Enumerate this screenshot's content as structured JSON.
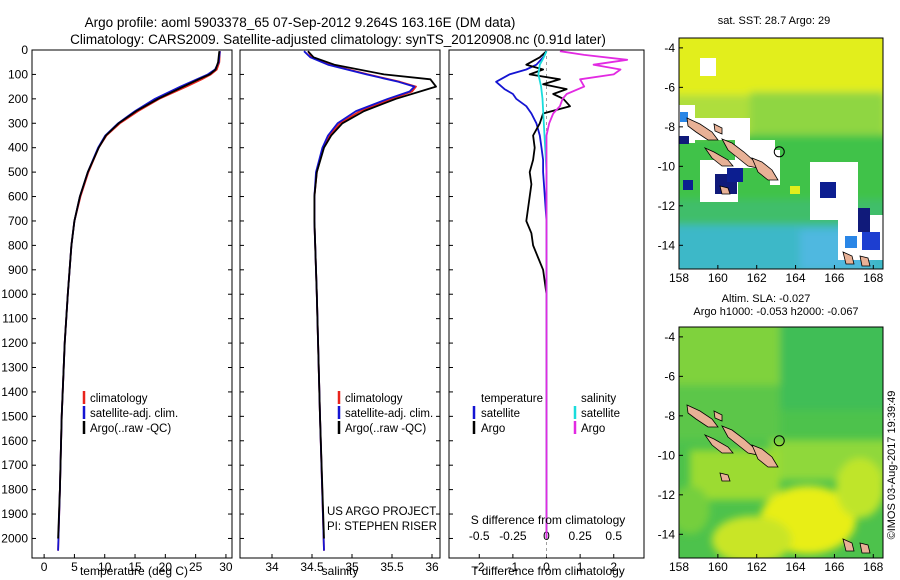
{
  "titles": {
    "line1": "Argo profile: aoml 5903378_65 07-Sep-2012 9.264S 163.16E (DM data)",
    "line2": "Climatology: CARS2009. Satellite-adjusted climatology: synTS_20120908.nc (0.91d later)"
  },
  "chart_data": [
    {
      "id": "temperature",
      "type": "line",
      "xlabel": "temperature (deg C)",
      "ylabel": "",
      "xlim": [
        -2,
        31
      ],
      "ylim": [
        2080,
        0
      ],
      "xticks": [
        0,
        5,
        10,
        15,
        20,
        25,
        30
      ],
      "yticks": [
        0,
        100,
        200,
        300,
        400,
        500,
        600,
        700,
        800,
        900,
        1000,
        1100,
        1200,
        1300,
        1400,
        1500,
        1600,
        1700,
        1800,
        1900,
        2000
      ],
      "legend": [
        "climatology",
        "satellite-adj. clim.",
        "Argo(..raw -QC)"
      ],
      "series": [
        {
          "name": "climatology",
          "color": "#e8231c",
          "depth": [
            5,
            50,
            80,
            100,
            120,
            150,
            200,
            250,
            300,
            350,
            400,
            500,
            600,
            700,
            800,
            1000,
            1200,
            1500,
            1800,
            2050
          ],
          "values": [
            29.0,
            28.9,
            28.5,
            27.5,
            26.0,
            23.5,
            19.0,
            15.5,
            12.5,
            10.3,
            9.0,
            7.3,
            6.0,
            5.0,
            4.5,
            3.9,
            3.4,
            2.9,
            2.6,
            2.3
          ]
        },
        {
          "name": "satellite-adj. clim.",
          "color": "#1414d2",
          "depth": [
            5,
            50,
            80,
            100,
            120,
            150,
            200,
            250,
            300,
            350,
            400,
            500,
            600,
            700,
            800,
            1000,
            1200,
            1500,
            1800,
            2050
          ],
          "values": [
            29.0,
            28.8,
            28.2,
            27.0,
            25.2,
            22.5,
            18.3,
            15.0,
            12.2,
            10.1,
            8.9,
            7.2,
            5.9,
            5.0,
            4.5,
            3.9,
            3.4,
            2.9,
            2.6,
            2.3
          ]
        },
        {
          "name": "Argo(..raw -QC)",
          "color": "#000000",
          "depth": [
            5,
            50,
            80,
            100,
            120,
            150,
            200,
            250,
            300,
            350,
            400,
            500,
            600,
            700,
            800,
            1000,
            1200,
            1500,
            1800,
            2000
          ],
          "values": [
            28.9,
            28.7,
            28.3,
            27.3,
            25.5,
            23.0,
            18.8,
            15.2,
            12.3,
            10.2,
            9.0,
            7.2,
            5.9,
            5.0,
            4.5,
            3.9,
            3.4,
            2.9,
            2.6,
            2.3
          ]
        }
      ]
    },
    {
      "id": "salinity",
      "type": "line",
      "xlabel": "salinity",
      "xlim": [
        33.6,
        36.1
      ],
      "ylim": [
        2080,
        0
      ],
      "xticks": [
        34,
        34.5,
        35,
        35.5,
        36
      ],
      "xtick_labels": [
        "34",
        "34.5",
        "35",
        "35.5",
        "36"
      ],
      "legend": [
        "climatology",
        "satellite-adj. clim.",
        "Argo(..raw -QC)"
      ],
      "annotation": [
        "US ARGO PROJECT",
        "PI: STEPHEN RISER"
      ],
      "series": [
        {
          "name": "climatology",
          "color": "#e8231c",
          "depth": [
            5,
            30,
            60,
            100,
            130,
            150,
            170,
            200,
            250,
            300,
            350,
            400,
            500,
            600,
            700,
            800,
            1000,
            1500,
            2050
          ],
          "values": [
            34.45,
            34.5,
            34.72,
            35.2,
            35.6,
            35.8,
            35.75,
            35.5,
            35.1,
            34.85,
            34.72,
            34.64,
            34.56,
            34.53,
            34.53,
            34.54,
            34.56,
            34.6,
            34.65
          ]
        },
        {
          "name": "satellite-adj. clim.",
          "color": "#1414d2",
          "depth": [
            5,
            30,
            60,
            100,
            130,
            150,
            170,
            200,
            250,
            300,
            350,
            400,
            500,
            600,
            700,
            800,
            1000,
            1500,
            2050
          ],
          "values": [
            34.4,
            34.48,
            34.7,
            35.18,
            35.58,
            35.78,
            35.72,
            35.45,
            35.05,
            34.82,
            34.7,
            34.63,
            34.55,
            34.53,
            34.53,
            34.54,
            34.56,
            34.6,
            34.65
          ]
        },
        {
          "name": "Argo(..raw -QC)",
          "color": "#000000",
          "depth": [
            5,
            30,
            60,
            100,
            120,
            150,
            170,
            200,
            250,
            300,
            350,
            400,
            500,
            600,
            700,
            800,
            1000,
            1500,
            2000
          ],
          "values": [
            34.45,
            34.52,
            34.78,
            35.4,
            35.98,
            36.05,
            35.85,
            35.55,
            35.15,
            34.88,
            34.74,
            34.65,
            34.56,
            34.53,
            34.53,
            34.54,
            34.56,
            34.6,
            34.65
          ]
        }
      ]
    },
    {
      "id": "difference",
      "type": "line",
      "xlabel": "T difference from climatology",
      "xlabel_top": "S difference from climatology",
      "xlim": [
        -2.9,
        2.9
      ],
      "ylim": [
        2080,
        0
      ],
      "xticks": [
        -2,
        -1,
        0,
        1,
        2
      ],
      "xticks_S": [
        -0.5,
        -0.25,
        0,
        0.25,
        0.5
      ],
      "xtick_labels_S": [
        "-0.5",
        "-0.25",
        "0",
        "0.25",
        "0.5"
      ],
      "legend": {
        "temperature": {
          "title": "temperature",
          "items": [
            "satellite",
            "Argo"
          ]
        },
        "salinity": {
          "title": "salinity",
          "items": [
            "satellite",
            "Argo"
          ]
        }
      },
      "series": [
        {
          "name": "temperature satellite",
          "color": "#1414d2",
          "depth": [
            5,
            30,
            60,
            80,
            100,
            130,
            160,
            180,
            200,
            230,
            260,
            300,
            350,
            400,
            450,
            500,
            600,
            700,
            800,
            1000,
            1500,
            2000
          ],
          "values": [
            0.0,
            -0.1,
            -0.3,
            -0.6,
            -1.1,
            -1.5,
            -1.25,
            -1.0,
            -0.9,
            -0.6,
            -0.45,
            -0.3,
            -0.2,
            -0.15,
            -0.1,
            -0.1,
            -0.05,
            0.0,
            0.0,
            0.0,
            0.0,
            0.0
          ]
        },
        {
          "name": "temperature Argo",
          "color": "#000000",
          "depth": [
            5,
            30,
            60,
            80,
            100,
            120,
            140,
            160,
            180,
            200,
            230,
            260,
            300,
            350,
            400,
            450,
            500,
            550,
            600,
            650,
            700,
            750,
            800,
            850,
            900,
            1000,
            1500,
            2000
          ],
          "values": [
            0.0,
            -0.2,
            -0.6,
            -0.1,
            -0.5,
            0.4,
            -0.1,
            0.6,
            0.2,
            0.5,
            0.7,
            -0.1,
            -0.2,
            -0.4,
            -0.35,
            -0.4,
            -0.5,
            -0.45,
            -0.5,
            -0.55,
            -0.6,
            -0.45,
            -0.4,
            -0.25,
            -0.1,
            0.0,
            0.0,
            0.0
          ]
        },
        {
          "name": "salinity satellite",
          "color": "#19dcdc",
          "depth": [
            5,
            30,
            60,
            100,
            150,
            200,
            300,
            400,
            500,
            600,
            800,
            1000,
            1500,
            2000
          ],
          "values": [
            0.0,
            -0.02,
            -0.05,
            -0.06,
            -0.04,
            -0.03,
            -0.02,
            -0.01,
            0.0,
            0.0,
            0.0,
            0.0,
            0.0,
            0.0
          ]
        },
        {
          "name": "salinity Argo",
          "color": "#e22ae2",
          "depth": [
            5,
            20,
            40,
            60,
            80,
            100,
            120,
            150,
            180,
            200,
            230,
            260,
            300,
            350,
            400,
            500,
            600,
            800,
            1000,
            1500,
            2000
          ],
          "values": [
            0.1,
            0.28,
            0.6,
            0.35,
            0.55,
            0.5,
            0.25,
            0.28,
            0.15,
            0.12,
            0.1,
            0.05,
            0.02,
            0.0,
            0.0,
            0.0,
            0.0,
            0.0,
            0.0,
            0.0,
            0.0
          ]
        }
      ]
    },
    {
      "id": "map_sst",
      "type": "heatmap",
      "title": "sat. SST: 28.7 Argo: 29",
      "xlim": [
        158,
        168.5
      ],
      "ylim": [
        -15.2,
        -3.5
      ],
      "xticks": [
        158,
        160,
        162,
        164,
        166,
        168
      ],
      "yticks": [
        -4,
        -6,
        -8,
        -10,
        -12,
        -14
      ],
      "argo_position": [
        163.16,
        -9.264
      ]
    },
    {
      "id": "map_sla",
      "type": "heatmap",
      "title_line1": "Altim. SLA: -0.027",
      "title_line2": "Argo h1000: -0.053 h2000: -0.067",
      "xlim": [
        158,
        168.5
      ],
      "ylim": [
        -15.2,
        -3.5
      ],
      "xticks": [
        158,
        160,
        162,
        164,
        166,
        168
      ],
      "yticks": [
        -4,
        -6,
        -8,
        -10,
        -12,
        -14
      ],
      "argo_position": [
        163.16,
        -9.264
      ]
    }
  ],
  "colors": {
    "climatology": "#e8231c",
    "satellite": "#1414d2",
    "argo": "#000000",
    "salinity_satellite": "#19dcdc",
    "salinity_argo": "#e22ae2",
    "land": "#e8b196"
  },
  "watermark": "©IMOS 03-Aug-2017 19:39:49"
}
